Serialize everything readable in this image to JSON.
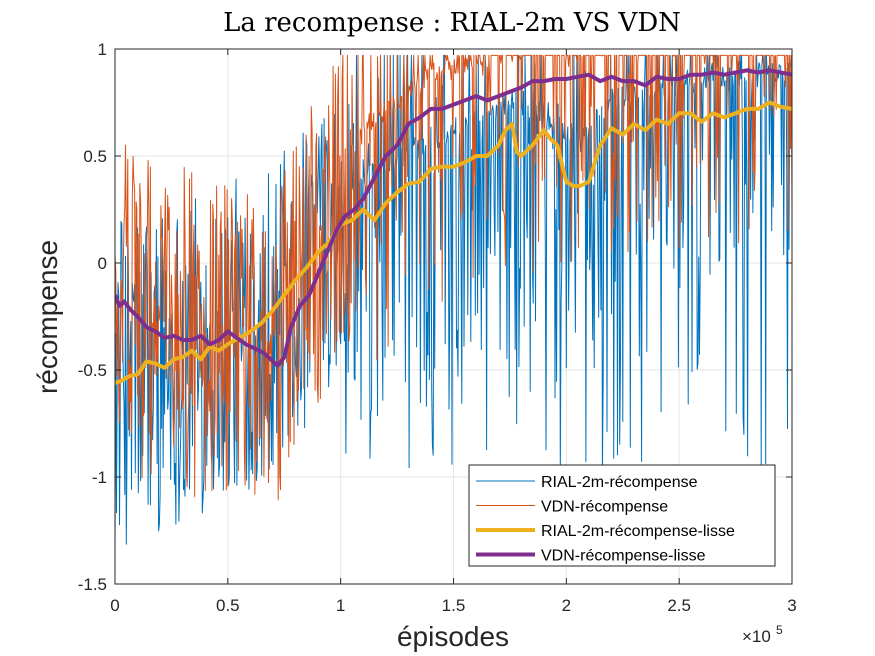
{
  "chart_data": {
    "type": "line",
    "title": "La recompense : RIAL-2m VS VDN",
    "xlabel": "épisodes",
    "ylabel": "récompense",
    "x_multiplier_label": "×10",
    "x_multiplier_exp": "5",
    "xlim": [
      0,
      3
    ],
    "ylim": [
      -1.5,
      1
    ],
    "x_ticks": [
      0,
      0.5,
      1,
      1.5,
      2,
      2.5,
      3
    ],
    "x_tick_labels": [
      "0",
      "0.5",
      "1",
      "1.5",
      "2",
      "2.5",
      "3"
    ],
    "y_ticks": [
      -1.5,
      -1,
      -0.5,
      0,
      0.5,
      1
    ],
    "y_tick_labels": [
      "-1.5",
      "-1",
      "-0.5",
      "0",
      "0.5",
      "1"
    ],
    "grid": true,
    "legend_position": "bottom-right",
    "series": [
      {
        "name": "RIAL-2m-récompense",
        "color": "#0072BD",
        "width": 1,
        "kind": "noisy",
        "mean": {
          "x": [
            0,
            0.25,
            0.5,
            0.75,
            0.9,
            1.05,
            1.2,
            1.4,
            1.6,
            1.75,
            1.9,
            2.05,
            2.2,
            2.4,
            2.6,
            2.8,
            3.0
          ],
          "y": [
            -0.55,
            -0.45,
            -0.38,
            -0.2,
            0.0,
            0.2,
            0.3,
            0.42,
            0.5,
            0.6,
            0.55,
            0.4,
            0.6,
            0.65,
            0.7,
            0.72,
            0.72
          ]
        }
      },
      {
        "name": "VDN-récompense",
        "color": "#D95319",
        "width": 1,
        "kind": "noisy",
        "mean": {
          "x": [
            0,
            0.25,
            0.5,
            0.7,
            0.8,
            0.9,
            1.0,
            1.2,
            1.4,
            1.6,
            1.8,
            2.0,
            2.2,
            2.5,
            2.8,
            3.0
          ],
          "y": [
            -0.18,
            -0.3,
            -0.38,
            -0.48,
            -0.1,
            0.05,
            0.3,
            0.55,
            0.72,
            0.8,
            0.85,
            0.86,
            0.86,
            0.87,
            0.89,
            0.88
          ]
        }
      },
      {
        "name": "RIAL-2m-récompense-lisse",
        "color": "#EDB120",
        "width": 4,
        "kind": "smooth",
        "x": [
          0,
          0.03,
          0.06,
          0.1,
          0.14,
          0.18,
          0.22,
          0.26,
          0.3,
          0.34,
          0.38,
          0.42,
          0.46,
          0.5,
          0.55,
          0.6,
          0.65,
          0.7,
          0.75,
          0.8,
          0.85,
          0.9,
          0.95,
          1.0,
          1.05,
          1.1,
          1.15,
          1.2,
          1.25,
          1.3,
          1.35,
          1.4,
          1.45,
          1.5,
          1.55,
          1.6,
          1.65,
          1.7,
          1.73,
          1.76,
          1.78,
          1.8,
          1.85,
          1.9,
          1.93,
          1.96,
          2.0,
          2.03,
          2.06,
          2.1,
          2.15,
          2.2,
          2.25,
          2.3,
          2.35,
          2.4,
          2.45,
          2.5,
          2.55,
          2.6,
          2.65,
          2.7,
          2.75,
          2.8,
          2.85,
          2.9,
          2.95,
          3.0
        ],
        "y": [
          -0.56,
          -0.55,
          -0.53,
          -0.52,
          -0.46,
          -0.47,
          -0.49,
          -0.45,
          -0.44,
          -0.41,
          -0.45,
          -0.39,
          -0.41,
          -0.38,
          -0.35,
          -0.32,
          -0.28,
          -0.22,
          -0.15,
          -0.08,
          -0.02,
          0.05,
          0.1,
          0.18,
          0.2,
          0.25,
          0.2,
          0.28,
          0.33,
          0.37,
          0.38,
          0.44,
          0.45,
          0.45,
          0.47,
          0.5,
          0.5,
          0.55,
          0.62,
          0.65,
          0.52,
          0.5,
          0.55,
          0.62,
          0.58,
          0.55,
          0.38,
          0.36,
          0.36,
          0.38,
          0.55,
          0.63,
          0.6,
          0.65,
          0.62,
          0.67,
          0.65,
          0.7,
          0.7,
          0.66,
          0.7,
          0.68,
          0.7,
          0.72,
          0.72,
          0.75,
          0.73,
          0.72
        ]
      },
      {
        "name": "VDN-récompense-lisse",
        "color": "#7E2F8E",
        "width": 4,
        "kind": "smooth",
        "x": [
          0,
          0.02,
          0.04,
          0.07,
          0.1,
          0.14,
          0.18,
          0.22,
          0.26,
          0.3,
          0.34,
          0.38,
          0.42,
          0.46,
          0.5,
          0.54,
          0.58,
          0.62,
          0.66,
          0.7,
          0.72,
          0.75,
          0.78,
          0.82,
          0.86,
          0.9,
          0.94,
          0.98,
          1.02,
          1.06,
          1.1,
          1.15,
          1.2,
          1.25,
          1.3,
          1.35,
          1.4,
          1.45,
          1.5,
          1.55,
          1.6,
          1.65,
          1.7,
          1.75,
          1.8,
          1.85,
          1.9,
          1.95,
          2.0,
          2.05,
          2.1,
          2.15,
          2.2,
          2.25,
          2.3,
          2.35,
          2.4,
          2.45,
          2.5,
          2.55,
          2.6,
          2.65,
          2.7,
          2.75,
          2.8,
          2.85,
          2.9,
          2.95,
          3.0
        ],
        "y": [
          -0.15,
          -0.2,
          -0.18,
          -0.22,
          -0.25,
          -0.3,
          -0.32,
          -0.35,
          -0.34,
          -0.36,
          -0.36,
          -0.34,
          -0.38,
          -0.36,
          -0.32,
          -0.35,
          -0.38,
          -0.4,
          -0.42,
          -0.46,
          -0.48,
          -0.44,
          -0.3,
          -0.2,
          -0.15,
          -0.05,
          0.05,
          0.15,
          0.22,
          0.25,
          0.3,
          0.4,
          0.5,
          0.55,
          0.65,
          0.68,
          0.72,
          0.72,
          0.74,
          0.76,
          0.78,
          0.76,
          0.78,
          0.8,
          0.82,
          0.85,
          0.85,
          0.86,
          0.86,
          0.87,
          0.88,
          0.85,
          0.87,
          0.85,
          0.85,
          0.83,
          0.87,
          0.86,
          0.86,
          0.88,
          0.88,
          0.89,
          0.88,
          0.89,
          0.9,
          0.89,
          0.9,
          0.89,
          0.88
        ]
      }
    ]
  }
}
